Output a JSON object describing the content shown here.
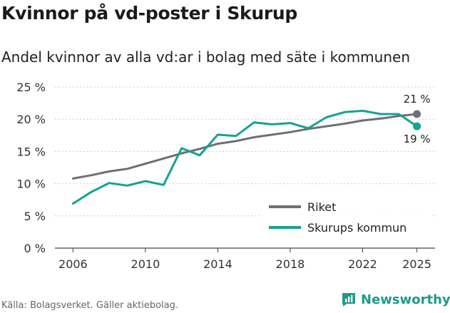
{
  "title": "Kvinnor på vd-poster i Skurup",
  "subtitle": "Andel kvinnor av alla vd:ar i bolag med säte i kommunen",
  "source": "Källa: Bolagsverket. Gäller aktiebolag.",
  "brand": "Newsworthy",
  "colors": {
    "riket": "#6f6e73",
    "skurup": "#14a394",
    "grid": "#cccccc",
    "brand": "#1e9a8a"
  },
  "chart_data": {
    "type": "line",
    "title": "Kvinnor på vd-poster i Skurup",
    "ylim": [
      0,
      25
    ],
    "xlim": [
      2005,
      2026
    ],
    "y_ticks": [
      {
        "value": 0,
        "label": "0 %"
      },
      {
        "value": 5,
        "label": "5 %"
      },
      {
        "value": 10,
        "label": "10 %"
      },
      {
        "value": 15,
        "label": "15 %"
      },
      {
        "value": 20,
        "label": "20 %"
      },
      {
        "value": 25,
        "label": "25 %"
      }
    ],
    "x_ticks": [
      {
        "value": 2006,
        "label": "2006"
      },
      {
        "value": 2010,
        "label": "2010"
      },
      {
        "value": 2014,
        "label": "2014"
      },
      {
        "value": 2018,
        "label": "2018"
      },
      {
        "value": 2022,
        "label": "2022"
      },
      {
        "value": 2025,
        "label": "2025"
      }
    ],
    "x": [
      2006,
      2007,
      2008,
      2009,
      2010,
      2011,
      2012,
      2013,
      2014,
      2015,
      2016,
      2017,
      2018,
      2019,
      2020,
      2021,
      2022,
      2023,
      2024,
      2025
    ],
    "series": [
      {
        "name": "Riket",
        "key": "riket",
        "values": [
          10.8,
          11.3,
          11.9,
          12.3,
          13.1,
          13.9,
          14.7,
          15.4,
          16.2,
          16.6,
          17.2,
          17.6,
          18.0,
          18.5,
          18.9,
          19.3,
          19.8,
          20.1,
          20.5,
          20.8
        ],
        "end_label": "21 %"
      },
      {
        "name": "Skurups kommun",
        "key": "skurup",
        "values": [
          6.9,
          8.7,
          10.1,
          9.7,
          10.4,
          9.8,
          15.5,
          14.4,
          17.6,
          17.4,
          19.5,
          19.2,
          19.4,
          18.6,
          20.3,
          21.1,
          21.3,
          20.8,
          20.8,
          18.9
        ],
        "end_label": "19 %"
      }
    ],
    "legend": {
      "position": "bottom-right"
    }
  }
}
